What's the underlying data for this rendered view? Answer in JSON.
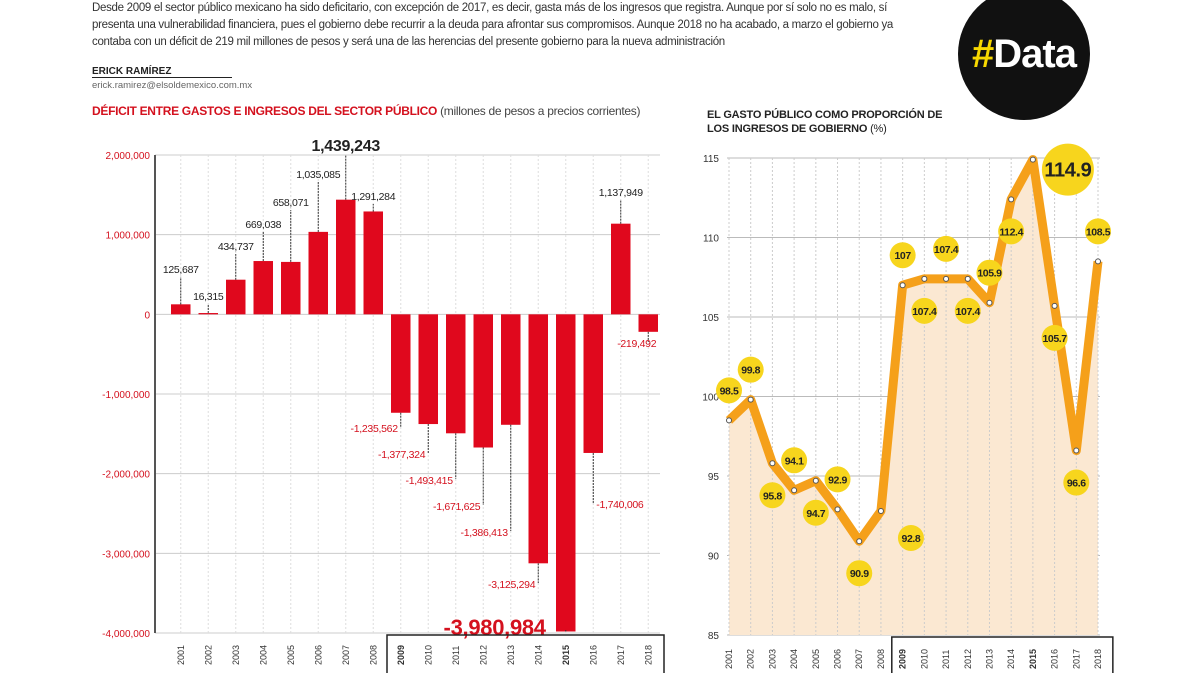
{
  "intro_text": "Desde 2009 el sector público mexicano ha sido deficitario, con excepción de 2017, es decir, gasta más de los ingresos que registra. Aunque por sí solo no es malo, sí presenta una vulnerabilidad financiera, pues el gobierno debe recurrir a la deuda para afrontar sus compromisos. Aunque 2018 no ha acabado, a marzo el gobierno ya contaba con un déficit de 219 mil millones de pesos y será una de las herencias del presente gobierno para la nueva administración",
  "author": {
    "name": "ERICK RAMÍREZ",
    "email": "erick.ramirez@elsoldemexico.com.mx"
  },
  "logo": {
    "hash": "#",
    "text": "Data"
  },
  "colors": {
    "bar": "#e0081d",
    "line": "#f5a01a",
    "bubble": "#f7d51d",
    "area": "#fbe8d2",
    "logo_bg": "#111111"
  },
  "chart_data": [
    {
      "type": "bar",
      "title": "DÉFICIT ENTRE GASTOS E INGRESOS DEL SECTOR PÚBLICO",
      "subtitle": "(millones de pesos a precios corrientes)",
      "categories": [
        "2001",
        "2002",
        "2003",
        "2004",
        "2005",
        "2006",
        "2007",
        "2008",
        "2009",
        "2010",
        "2011",
        "2012",
        "2013",
        "2014",
        "2015",
        "2016",
        "2017",
        "2018"
      ],
      "values": [
        125687,
        16315,
        434737,
        669038,
        658071,
        1035085,
        1439243,
        1291284,
        -1235562,
        -1377324,
        -1493415,
        -1671625,
        -1386413,
        -3125294,
        -3980984,
        -1740006,
        1137949,
        -219492
      ],
      "data_labels": [
        "125,687",
        "16,315",
        "434,737",
        "669,038",
        "658,071",
        "1,035,085",
        "1,439,243",
        "1,291,284",
        "-1,235,562",
        "-1,377,324",
        "-1,493,415",
        "-1,671,625",
        "-1,386,413",
        "-3,125,294",
        "-3,980,984",
        "-1,740,006",
        "1,137,949",
        "-219,492"
      ],
      "yticks": [
        2000000,
        1000000,
        0,
        -1000000,
        -2000000,
        -3000000,
        -4000000
      ],
      "ytick_labels": [
        "2,000,000",
        "1,000,000",
        "0",
        "-1,000,000",
        "-2,000,000",
        "-3,000,000",
        "-4,000,000"
      ],
      "ylim": [
        -4000000,
        2000000
      ],
      "highlighted_years": [
        "2009",
        "2015"
      ],
      "grid": true
    },
    {
      "type": "area",
      "title": "EL GASTO PÚBLICO COMO PROPORCIÓN DE LOS INGRESOS DE GOBIERNO",
      "unit": "(%)",
      "categories": [
        "2001",
        "2002",
        "2003",
        "2004",
        "2005",
        "2006",
        "2007",
        "2008",
        "2009",
        "2010",
        "2011",
        "2012",
        "2013",
        "2014",
        "2015",
        "2016",
        "2017",
        "2018"
      ],
      "values": [
        98.5,
        99.8,
        95.8,
        94.1,
        94.7,
        92.9,
        90.9,
        92.8,
        107,
        107.4,
        107.4,
        107.4,
        105.9,
        112.4,
        114.9,
        105.7,
        96.6,
        108.5
      ],
      "data_labels": [
        "98.5",
        "99.8",
        "95.8",
        "94.1",
        "94.7",
        "92.9",
        "90.9",
        "92.8",
        "107",
        "107.4",
        "107.4",
        "107.4",
        "105.9",
        "112.4",
        "114.9",
        "105.7",
        "96.6",
        "108.5"
      ],
      "yticks": [
        115,
        110,
        105,
        100,
        95,
        90,
        85
      ],
      "ylim": [
        85,
        115
      ],
      "highlighted_years": [
        "2009",
        "2015"
      ],
      "grid": true
    }
  ]
}
